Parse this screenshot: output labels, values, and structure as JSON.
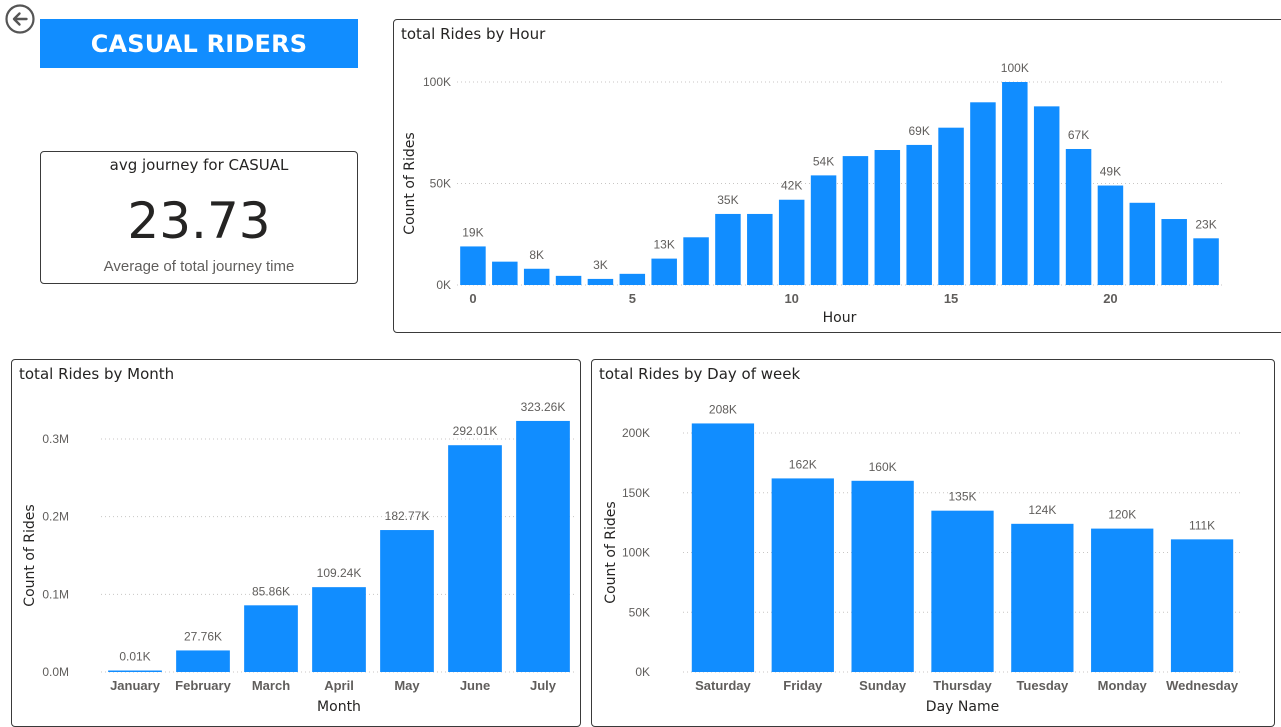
{
  "header": {
    "title": "CASUAL RIDERS",
    "back_icon": "back-arrow-icon"
  },
  "kpi": {
    "title": "avg journey for CASUAL",
    "value": "23.73",
    "subtitle": "Average of total journey time"
  },
  "colors": {
    "accent": "#118dff",
    "bar": "#118dff",
    "text": "#252423",
    "muted": "#605e5c"
  },
  "chart_data": [
    {
      "id": "hour",
      "type": "bar",
      "title": "total Rides by Hour",
      "xlabel": "Hour",
      "ylabel": "Count of Rides",
      "categories": [
        0,
        1,
        2,
        3,
        4,
        5,
        6,
        7,
        8,
        9,
        10,
        11,
        12,
        13,
        14,
        15,
        16,
        17,
        18,
        19,
        20,
        21,
        22,
        23
      ],
      "values": [
        19000,
        11500,
        8000,
        4500,
        3000,
        5500,
        13000,
        23500,
        35000,
        35000,
        42000,
        54000,
        63500,
        66500,
        69000,
        77500,
        90000,
        100000,
        88000,
        67000,
        49000,
        40500,
        32500,
        23000
      ],
      "data_labels": {
        "0": "19K",
        "2": "8K",
        "4": "3K",
        "6": "13K",
        "8": "35K",
        "10": "42K",
        "11": "54K",
        "14": "69K",
        "17": "100K",
        "19": "67K",
        "20": "49K",
        "23": "23K"
      },
      "x_ticks": [
        "0",
        "5",
        "10",
        "15",
        "20"
      ],
      "y_ticks": [
        "0K",
        "50K",
        "100K"
      ],
      "ylim": [
        0,
        100000
      ],
      "grid": true
    },
    {
      "id": "month",
      "type": "bar",
      "title": "total Rides by Month",
      "xlabel": "Month",
      "ylabel": "Count of Rides",
      "categories": [
        "January",
        "February",
        "March",
        "April",
        "May",
        "June",
        "July"
      ],
      "values": [
        10,
        27760,
        85860,
        109240,
        182770,
        292010,
        323260
      ],
      "data_labels": [
        "0.01K",
        "27.76K",
        "85.86K",
        "109.24K",
        "182.77K",
        "292.01K",
        "323.26K"
      ],
      "y_ticks": [
        "0.0M",
        "0.1M",
        "0.2M",
        "0.3M"
      ],
      "ylim": [
        0,
        300000
      ],
      "grid": true
    },
    {
      "id": "day",
      "type": "bar",
      "title": "total Rides by Day of week",
      "xlabel": "Day Name",
      "ylabel": "Count of Rides",
      "categories": [
        "Saturday",
        "Friday",
        "Sunday",
        "Thursday",
        "Tuesday",
        "Monday",
        "Wednesday"
      ],
      "values": [
        208000,
        162000,
        160000,
        135000,
        124000,
        120000,
        111000
      ],
      "data_labels": [
        "208K",
        "162K",
        "160K",
        "135K",
        "124K",
        "120K",
        "111K"
      ],
      "y_ticks": [
        "0K",
        "50K",
        "100K",
        "150K",
        "200K"
      ],
      "ylim": [
        0,
        200000
      ],
      "grid": true
    }
  ]
}
